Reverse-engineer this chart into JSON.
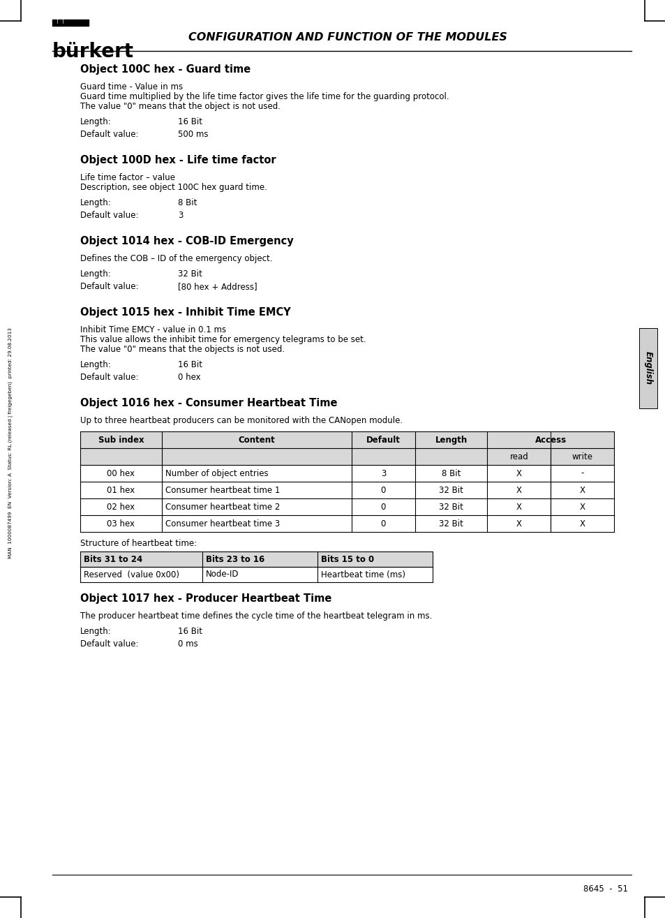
{
  "page_bg": "#ffffff",
  "brand": "bürkert",
  "header_title": "CONFIGURATION AND FUNCTION OF THE MODULES",
  "sidebar_text": "MAN  1000087499  EN  Version: A  Status: RL (released | freigegeben)  printed: 29.08.2013",
  "english_tab_text": "English",
  "page_number": "8645  -  51",
  "sections": [
    {
      "title": "Object 100C hex - Guard time",
      "body_lines": [
        "Guard time - Value in ms",
        "Guard time multiplied by the life time factor gives the life time for the guarding protocol.",
        "The value \"0\" means that the object is not used."
      ],
      "fields": [
        {
          "label": "Length:",
          "value": "16 Bit"
        },
        {
          "label": "Default value:",
          "value": "500 ms"
        }
      ]
    },
    {
      "title": "Object 100D hex - Life time factor",
      "body_lines": [
        "Life time factor – value",
        "Description, see object 100C hex guard time."
      ],
      "fields": [
        {
          "label": "Length:",
          "value": "8 Bit"
        },
        {
          "label": "Default value:",
          "value": "3"
        }
      ]
    },
    {
      "title": "Object 1014 hex - COB-ID Emergency",
      "body_lines": [
        "Defines the COB – ID of the emergency object."
      ],
      "fields": [
        {
          "label": "Length:",
          "value": "32 Bit"
        },
        {
          "label": "Default value:",
          "value": "[80 hex + Address]"
        }
      ]
    },
    {
      "title": "Object 1015 hex - Inhibit Time EMCY",
      "body_lines": [
        "Inhibit Time EMCY - value in 0.1 ms",
        "This value allows the inhibit time for emergency telegrams to be set.",
        "The value \"0\" means that the objects is not used."
      ],
      "fields": [
        {
          "label": "Length:",
          "value": "16 Bit"
        },
        {
          "label": "Default value:",
          "value": "0 hex"
        }
      ]
    },
    {
      "title": "Object 1016 hex - Consumer Heartbeat Time",
      "body_lines": [
        "Up to three heartbeat producers can be monitored with the CANopen module."
      ],
      "has_table1": true
    },
    {
      "title": "Object 1017 hex - Producer Heartbeat Time",
      "body_lines": [
        "The producer heartbeat time defines the cycle time of the heartbeat telegram in ms."
      ],
      "fields": [
        {
          "label": "Length:",
          "value": "16 Bit"
        },
        {
          "label": "Default value:",
          "value": "0 ms"
        }
      ]
    }
  ],
  "table1": {
    "rows": [
      [
        "00 hex",
        "Number of object entries",
        "3",
        "8 Bit",
        "X",
        "-"
      ],
      [
        "01 hex",
        "Consumer heartbeat time 1",
        "0",
        "32 Bit",
        "X",
        "X"
      ],
      [
        "02 hex",
        "Consumer heartbeat time 2",
        "0",
        "32 Bit",
        "X",
        "X"
      ],
      [
        "03 hex",
        "Consumer heartbeat time 3",
        "0",
        "32 Bit",
        "X",
        "X"
      ]
    ],
    "structure_label": "Structure of heartbeat time:"
  },
  "table2": {
    "header_row": [
      "Bits 31 to 24",
      "Bits 23 to 16",
      "Bits 15 to 0"
    ],
    "data_row": [
      "Reserved  (value 0x00)",
      "Node-ID",
      "Heartbeat time (ms)"
    ]
  }
}
